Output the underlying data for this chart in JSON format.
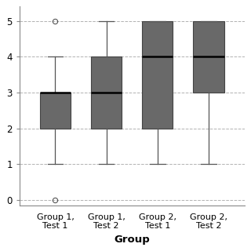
{
  "groups": [
    "Group 1,\nTest 1",
    "Group 1,\nTest 2",
    "Group 2,\nTest 1",
    "Group 2,\nTest 2"
  ],
  "box_stats": [
    {
      "whislo": 1,
      "q1": 2,
      "med": 3,
      "q3": 3,
      "whishi": 4,
      "fliers": [
        5,
        0
      ]
    },
    {
      "whislo": 1,
      "q1": 2,
      "med": 3,
      "q3": 4,
      "whishi": 5,
      "fliers": []
    },
    {
      "whislo": 1,
      "q1": 2,
      "med": 4,
      "q3": 5,
      "whishi": 5,
      "fliers": []
    },
    {
      "whislo": 1,
      "q1": 3,
      "med": 4,
      "q3": 5,
      "whishi": 5,
      "fliers": []
    }
  ],
  "ylabel": "",
  "xlabel": "Group",
  "ylim": [
    -0.15,
    5.4
  ],
  "yticks": [
    0,
    1,
    2,
    3,
    4,
    5
  ],
  "xlim": [
    0.3,
    4.7
  ],
  "box_color": "#696969",
  "median_color": "#000000",
  "whisker_color": "#555555",
  "cap_color": "#555555",
  "flier_color": "#555555",
  "background_color": "#ffffff",
  "grid_color": "#aaaaaa",
  "box_width": 0.6
}
